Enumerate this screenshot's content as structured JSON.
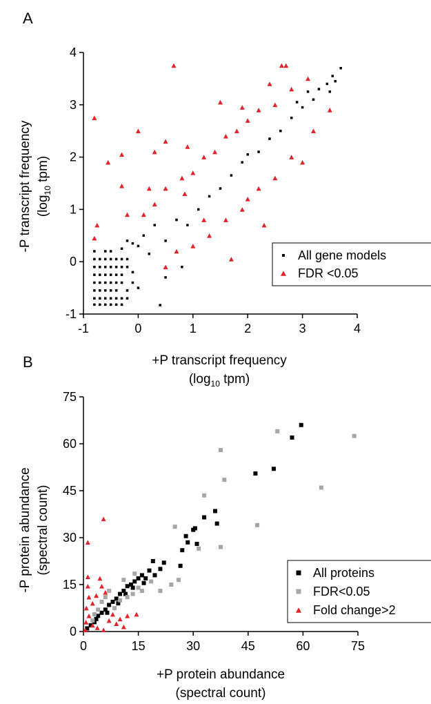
{
  "chart_data": [
    {
      "panel_label": "A",
      "type": "scatter",
      "xlabel": "+P transcript frequency",
      "xlabel_sub": {
        "pre": "(log",
        "sub": "10",
        "post": " tpm)"
      },
      "ylabel": "-P transcript frequency",
      "ylabel_sub": {
        "pre": "(log",
        "sub": "10",
        "post": " tpm)"
      },
      "xlim": [
        -1,
        4
      ],
      "ylim": [
        -1,
        4
      ],
      "xticks": [
        "-1",
        "0",
        "1",
        "2",
        "3",
        "4"
      ],
      "yticks": [
        "-1",
        "0",
        "1",
        "2",
        "3",
        "4"
      ],
      "grid": false,
      "legend_position": "bottom-right",
      "series": [
        {
          "name": "All gene models",
          "marker": "square",
          "color": "#000000",
          "points": [
            [
              -0.8,
              -0.82
            ],
            [
              -0.7,
              -0.82
            ],
            [
              -0.6,
              -0.82
            ],
            [
              -0.5,
              -0.82
            ],
            [
              -0.4,
              -0.82
            ],
            [
              -0.3,
              -0.82
            ],
            [
              0.4,
              -0.83
            ],
            [
              -0.8,
              -0.7
            ],
            [
              -0.7,
              -0.7
            ],
            [
              -0.6,
              -0.7
            ],
            [
              -0.5,
              -0.7
            ],
            [
              -0.4,
              -0.7
            ],
            [
              -0.3,
              -0.7
            ],
            [
              -0.2,
              -0.7
            ],
            [
              -0.8,
              -0.55
            ],
            [
              -0.7,
              -0.55
            ],
            [
              -0.6,
              -0.55
            ],
            [
              -0.5,
              -0.55
            ],
            [
              -0.4,
              -0.55
            ],
            [
              -0.2,
              -0.55
            ],
            [
              0.0,
              -0.5
            ],
            [
              -0.8,
              -0.4
            ],
            [
              -0.7,
              -0.4
            ],
            [
              -0.6,
              -0.4
            ],
            [
              -0.5,
              -0.4
            ],
            [
              -0.4,
              -0.4
            ],
            [
              -0.3,
              -0.4
            ],
            [
              -0.1,
              -0.4
            ],
            [
              -0.8,
              -0.25
            ],
            [
              -0.7,
              -0.25
            ],
            [
              -0.6,
              -0.25
            ],
            [
              -0.5,
              -0.25
            ],
            [
              -0.4,
              -0.25
            ],
            [
              -0.3,
              -0.25
            ],
            [
              -0.1,
              -0.2
            ],
            [
              -0.8,
              -0.1
            ],
            [
              -0.7,
              -0.1
            ],
            [
              -0.6,
              -0.1
            ],
            [
              -0.5,
              -0.1
            ],
            [
              -0.4,
              -0.1
            ],
            [
              -0.3,
              -0.1
            ],
            [
              -0.2,
              -0.1
            ],
            [
              -0.8,
              0.05
            ],
            [
              -0.7,
              0.05
            ],
            [
              -0.6,
              0.05
            ],
            [
              -0.5,
              0.05
            ],
            [
              -0.4,
              0.05
            ],
            [
              -0.3,
              0.05
            ],
            [
              -0.2,
              0.05
            ],
            [
              -0.8,
              0.2
            ],
            [
              -0.6,
              0.2
            ],
            [
              -0.5,
              0.2
            ],
            [
              -0.3,
              0.25
            ],
            [
              -0.1,
              0.35
            ],
            [
              0.5,
              -0.3
            ],
            [
              0.8,
              -0.1
            ],
            [
              -0.2,
              0.4
            ],
            [
              0.0,
              0.3
            ],
            [
              0.1,
              0.5
            ],
            [
              0.3,
              0.7
            ],
            [
              0.2,
              0.15
            ],
            [
              0.5,
              0.4
            ],
            [
              0.7,
              0.8
            ],
            [
              0.9,
              0.7
            ],
            [
              1.1,
              1.0
            ],
            [
              1.3,
              1.25
            ],
            [
              1.5,
              1.4
            ],
            [
              1.7,
              1.65
            ],
            [
              1.9,
              1.9
            ],
            [
              2.0,
              2.05
            ],
            [
              2.2,
              2.1
            ],
            [
              2.4,
              2.35
            ],
            [
              2.6,
              2.5
            ],
            [
              2.8,
              2.75
            ],
            [
              3.0,
              2.95
            ],
            [
              3.2,
              3.1
            ],
            [
              3.3,
              3.3
            ],
            [
              3.45,
              3.4
            ],
            [
              3.55,
              3.55
            ],
            [
              3.6,
              3.45
            ],
            [
              3.7,
              3.7
            ],
            [
              3.5,
              3.25
            ],
            [
              3.1,
              3.25
            ],
            [
              2.9,
              3.05
            ]
          ]
        },
        {
          "name": "FDR <0.05",
          "marker": "triangle",
          "color": "#e3222a",
          "points": [
            [
              -0.8,
              2.75
            ],
            [
              0.65,
              3.75
            ],
            [
              2.62,
              3.75
            ],
            [
              2.7,
              3.75
            ],
            [
              -0.55,
              1.9
            ],
            [
              -0.3,
              2.05
            ],
            [
              -0.75,
              0.7
            ],
            [
              -0.8,
              0.45
            ],
            [
              -0.3,
              1.45
            ],
            [
              0.0,
              2.5
            ],
            [
              0.3,
              2.1
            ],
            [
              0.5,
              2.3
            ],
            [
              1.5,
              3.05
            ],
            [
              1.9,
              2.95
            ],
            [
              2.4,
              3.4
            ],
            [
              0.1,
              0.9
            ],
            [
              0.3,
              1.1
            ],
            [
              0.5,
              1.4
            ],
            [
              0.8,
              1.6
            ],
            [
              1.0,
              1.7
            ],
            [
              1.2,
              2.0
            ],
            [
              1.4,
              2.1
            ],
            [
              1.6,
              2.4
            ],
            [
              1.8,
              2.5
            ],
            [
              2.0,
              2.7
            ],
            [
              2.2,
              2.9
            ],
            [
              2.5,
              3.0
            ],
            [
              2.8,
              3.3
            ],
            [
              3.1,
              3.5
            ],
            [
              0.5,
              -0.1
            ],
            [
              0.7,
              0.2
            ],
            [
              1.0,
              0.3
            ],
            [
              1.3,
              0.5
            ],
            [
              1.6,
              0.8
            ],
            [
              1.9,
              1.0
            ],
            [
              2.2,
              1.4
            ],
            [
              2.5,
              1.6
            ],
            [
              2.8,
              2.0
            ],
            [
              3.2,
              2.5
            ],
            [
              3.5,
              2.9
            ],
            [
              1.7,
              0.05
            ],
            [
              2.0,
              1.2
            ],
            [
              -0.2,
              0.9
            ],
            [
              0.2,
              1.4
            ],
            [
              0.9,
              2.2
            ],
            [
              1.2,
              0.8
            ],
            [
              0.85,
              1.3
            ],
            [
              3.0,
              1.9
            ],
            [
              2.3,
              0.7
            ]
          ]
        }
      ]
    },
    {
      "panel_label": "B",
      "type": "scatter",
      "xlabel": "+P protein abundance",
      "xlabel2": "(spectral count)",
      "ylabel": "-P protein abundance",
      "ylabel2": "(spectral  count)",
      "xlim": [
        0,
        75
      ],
      "ylim": [
        0,
        75
      ],
      "xticks": [
        "0",
        "15",
        "30",
        "45",
        "60",
        "75"
      ],
      "yticks": [
        "0",
        "15",
        "30",
        "45",
        "60",
        "75"
      ],
      "grid": false,
      "legend_position": "bottom-right",
      "series": [
        {
          "name": "All proteins",
          "marker": "square",
          "color": "#000000",
          "points": [
            [
              59.5,
              66
            ],
            [
              57,
              62
            ],
            [
              52,
              52
            ],
            [
              47,
              50.5
            ],
            [
              36,
              38.5
            ],
            [
              33,
              36.5
            ],
            [
              36.5,
              34.5
            ],
            [
              30.5,
              33
            ],
            [
              30,
              32.5
            ],
            [
              28,
              30.5
            ],
            [
              28.5,
              28.5
            ],
            [
              31,
              28
            ],
            [
              27,
              26
            ],
            [
              26.5,
              21
            ],
            [
              22,
              22
            ],
            [
              19,
              22.5
            ],
            [
              21,
              20
            ],
            [
              18,
              19.5
            ],
            [
              17,
              17
            ],
            [
              16,
              18
            ],
            [
              14,
              16
            ],
            [
              13,
              15
            ],
            [
              12,
              14.5
            ],
            [
              11,
              13
            ],
            [
              10,
              12
            ],
            [
              9,
              10.5
            ],
            [
              8,
              9.5
            ],
            [
              7,
              8.5
            ],
            [
              6,
              7
            ],
            [
              5,
              6
            ],
            [
              4,
              5
            ],
            [
              3.5,
              4
            ],
            [
              3,
              3
            ],
            [
              2,
              2
            ],
            [
              1,
              1
            ],
            [
              9.5,
              9
            ],
            [
              11.5,
              12
            ],
            [
              13.5,
              14
            ],
            [
              15,
              17
            ],
            [
              16.5,
              15.5
            ],
            [
              19.5,
              18
            ],
            [
              6.5,
              6
            ]
          ]
        },
        {
          "name": "FDR<0.05",
          "marker": "square",
          "color": "#a6a6a6",
          "points": [
            [
              53,
              64
            ],
            [
              74,
              62.5
            ],
            [
              37.5,
              58
            ],
            [
              38.5,
              48.5
            ],
            [
              65,
              46
            ],
            [
              33,
              43.5
            ],
            [
              25,
              33.5
            ],
            [
              47.5,
              34
            ],
            [
              37.5,
              27
            ],
            [
              31.5,
              26.5
            ],
            [
              26,
              16.5
            ],
            [
              24,
              15
            ],
            [
              21,
              13
            ],
            [
              15,
              14
            ],
            [
              11,
              16.5
            ],
            [
              7,
              13
            ],
            [
              6,
              11
            ],
            [
              5,
              9.5
            ],
            [
              12,
              11
            ],
            [
              10,
              10
            ],
            [
              13.5,
              12
            ],
            [
              4,
              7
            ],
            [
              3,
              5.5
            ],
            [
              14,
              18.5
            ],
            [
              18.5,
              16
            ],
            [
              8.5,
              7.5
            ],
            [
              2.5,
              3.5
            ],
            [
              16,
              13
            ]
          ]
        },
        {
          "name": "Fold change>2",
          "marker": "triangle",
          "color": "#e3222a",
          "points": [
            [
              5.5,
              36
            ],
            [
              1.2,
              28.5
            ],
            [
              1.2,
              17.5
            ],
            [
              1.2,
              14.5
            ],
            [
              4.5,
              17
            ],
            [
              5,
              14.5
            ],
            [
              1.5,
              11
            ],
            [
              2.5,
              9
            ],
            [
              0.8,
              7.5
            ],
            [
              3.5,
              11.5
            ],
            [
              6,
              12.5
            ],
            [
              12,
              5
            ],
            [
              14.5,
              5.5
            ],
            [
              11,
              1.5
            ],
            [
              5.5,
              0.5
            ],
            [
              0.7,
              3
            ],
            [
              1.5,
              5
            ],
            [
              2.5,
              2
            ],
            [
              3.8,
              1.2
            ],
            [
              8,
              5.5
            ],
            [
              9,
              2.5
            ],
            [
              0.5,
              0.5
            ],
            [
              7,
              3.5
            ],
            [
              10,
              4
            ]
          ]
        }
      ]
    }
  ]
}
